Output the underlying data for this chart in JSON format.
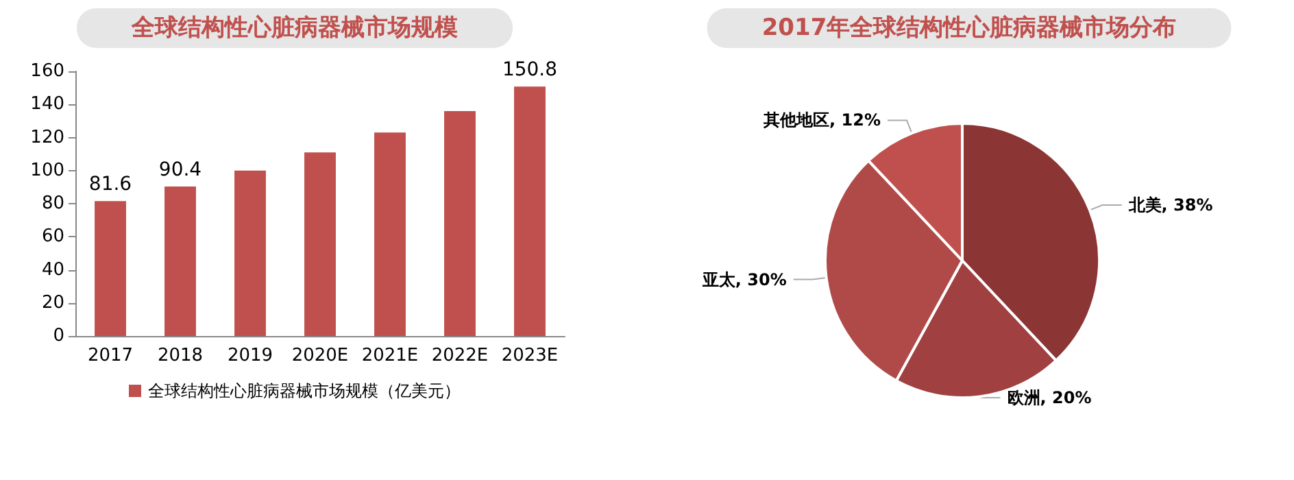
{
  "chart_data": [
    {
      "type": "bar",
      "title": "全球结构性心脏病器械市场规模",
      "categories": [
        "2017",
        "2018",
        "2019",
        "2020E",
        "2021E",
        "2022E",
        "2023E"
      ],
      "series": [
        {
          "name": "全球结构性心脏病器械市场规模（亿美元）",
          "color": "#c0504d",
          "values": [
            81.6,
            90.4,
            100,
            111,
            123,
            136,
            150.8
          ],
          "value_labels": [
            "81.6",
            "90.4",
            null,
            null,
            null,
            null,
            "150.8"
          ]
        }
      ],
      "ylim": [
        0,
        160
      ],
      "yticks": [
        0,
        20,
        40,
        60,
        80,
        100,
        120,
        140,
        160
      ],
      "grid": false,
      "legend": "bottom"
    },
    {
      "type": "pie",
      "title": "2017年全球结构性心脏病器械市场分布",
      "categories": [
        "北美",
        "欧洲",
        "亚太",
        "其他地区"
      ],
      "values": [
        38,
        20,
        30,
        12
      ],
      "colors": [
        "#8b3535",
        "#a04040",
        "#b04a48",
        "#c0504d"
      ],
      "value_labels": [
        "38%",
        "20%",
        "30%",
        "12%"
      ]
    }
  ]
}
